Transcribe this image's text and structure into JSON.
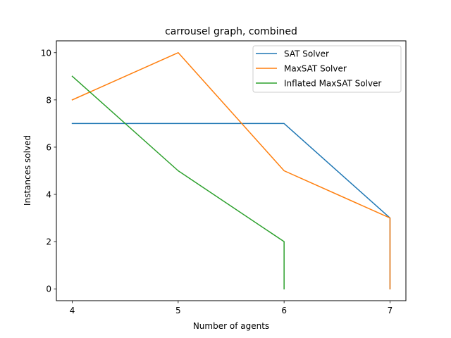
{
  "chart_data": {
    "type": "line",
    "title": "carrousel graph, combined",
    "xlabel": "Number of agents",
    "ylabel": "Instances solved",
    "xlim": [
      3.85,
      7.15
    ],
    "ylim": [
      -0.5,
      10.5
    ],
    "xticks": [
      4,
      5,
      6,
      7
    ],
    "yticks": [
      0,
      2,
      4,
      6,
      8,
      10
    ],
    "grid": false,
    "legend_position": "upper right",
    "series": [
      {
        "name": "SAT Solver",
        "color": "#1f77b4",
        "points": [
          [
            4,
            7
          ],
          [
            5,
            7
          ],
          [
            6,
            7
          ],
          [
            7,
            3
          ],
          [
            7,
            0
          ]
        ]
      },
      {
        "name": "MaxSAT Solver",
        "color": "#ff7f0e",
        "points": [
          [
            4,
            8
          ],
          [
            5,
            10
          ],
          [
            6,
            5
          ],
          [
            7,
            3
          ],
          [
            7,
            0
          ]
        ]
      },
      {
        "name": "Inflated MaxSAT Solver",
        "color": "#2ca02c",
        "points": [
          [
            4,
            9
          ],
          [
            5,
            5
          ],
          [
            6,
            2
          ],
          [
            6,
            0
          ]
        ]
      }
    ]
  }
}
